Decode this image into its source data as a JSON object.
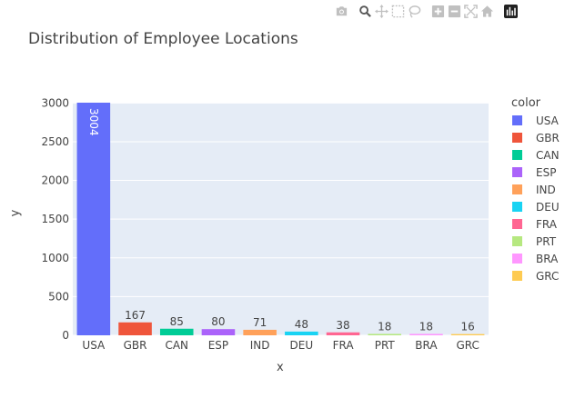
{
  "chart_data": {
    "type": "bar",
    "title": "Distribution of Employee Locations",
    "xlabel": "x",
    "ylabel": "y",
    "ylim": [
      0,
      3004
    ],
    "yticks": [
      0,
      500,
      1000,
      1500,
      2000,
      2500,
      3000
    ],
    "grid": true,
    "legend_title": "color",
    "legend_position": "right",
    "categories": [
      "USA",
      "GBR",
      "CAN",
      "ESP",
      "IND",
      "DEU",
      "FRA",
      "PRT",
      "BRA",
      "GRC"
    ],
    "values": [
      3004,
      167,
      85,
      80,
      71,
      48,
      38,
      18,
      18,
      16
    ],
    "colors": [
      "#636efa",
      "#EF553B",
      "#00cc96",
      "#ab63fa",
      "#FFA15A",
      "#19d3f3",
      "#FF6692",
      "#B6E880",
      "#FF97FF",
      "#FECB52"
    ],
    "plot_background": "#e5ecf6"
  },
  "modebar": {
    "buttons": [
      "camera-icon",
      "zoom-icon",
      "pan-icon",
      "box-select-icon",
      "lasso-icon",
      "zoom-in-icon",
      "zoom-out-icon",
      "autoscale-icon",
      "home-icon"
    ],
    "logo": "plotly-logo-icon"
  }
}
